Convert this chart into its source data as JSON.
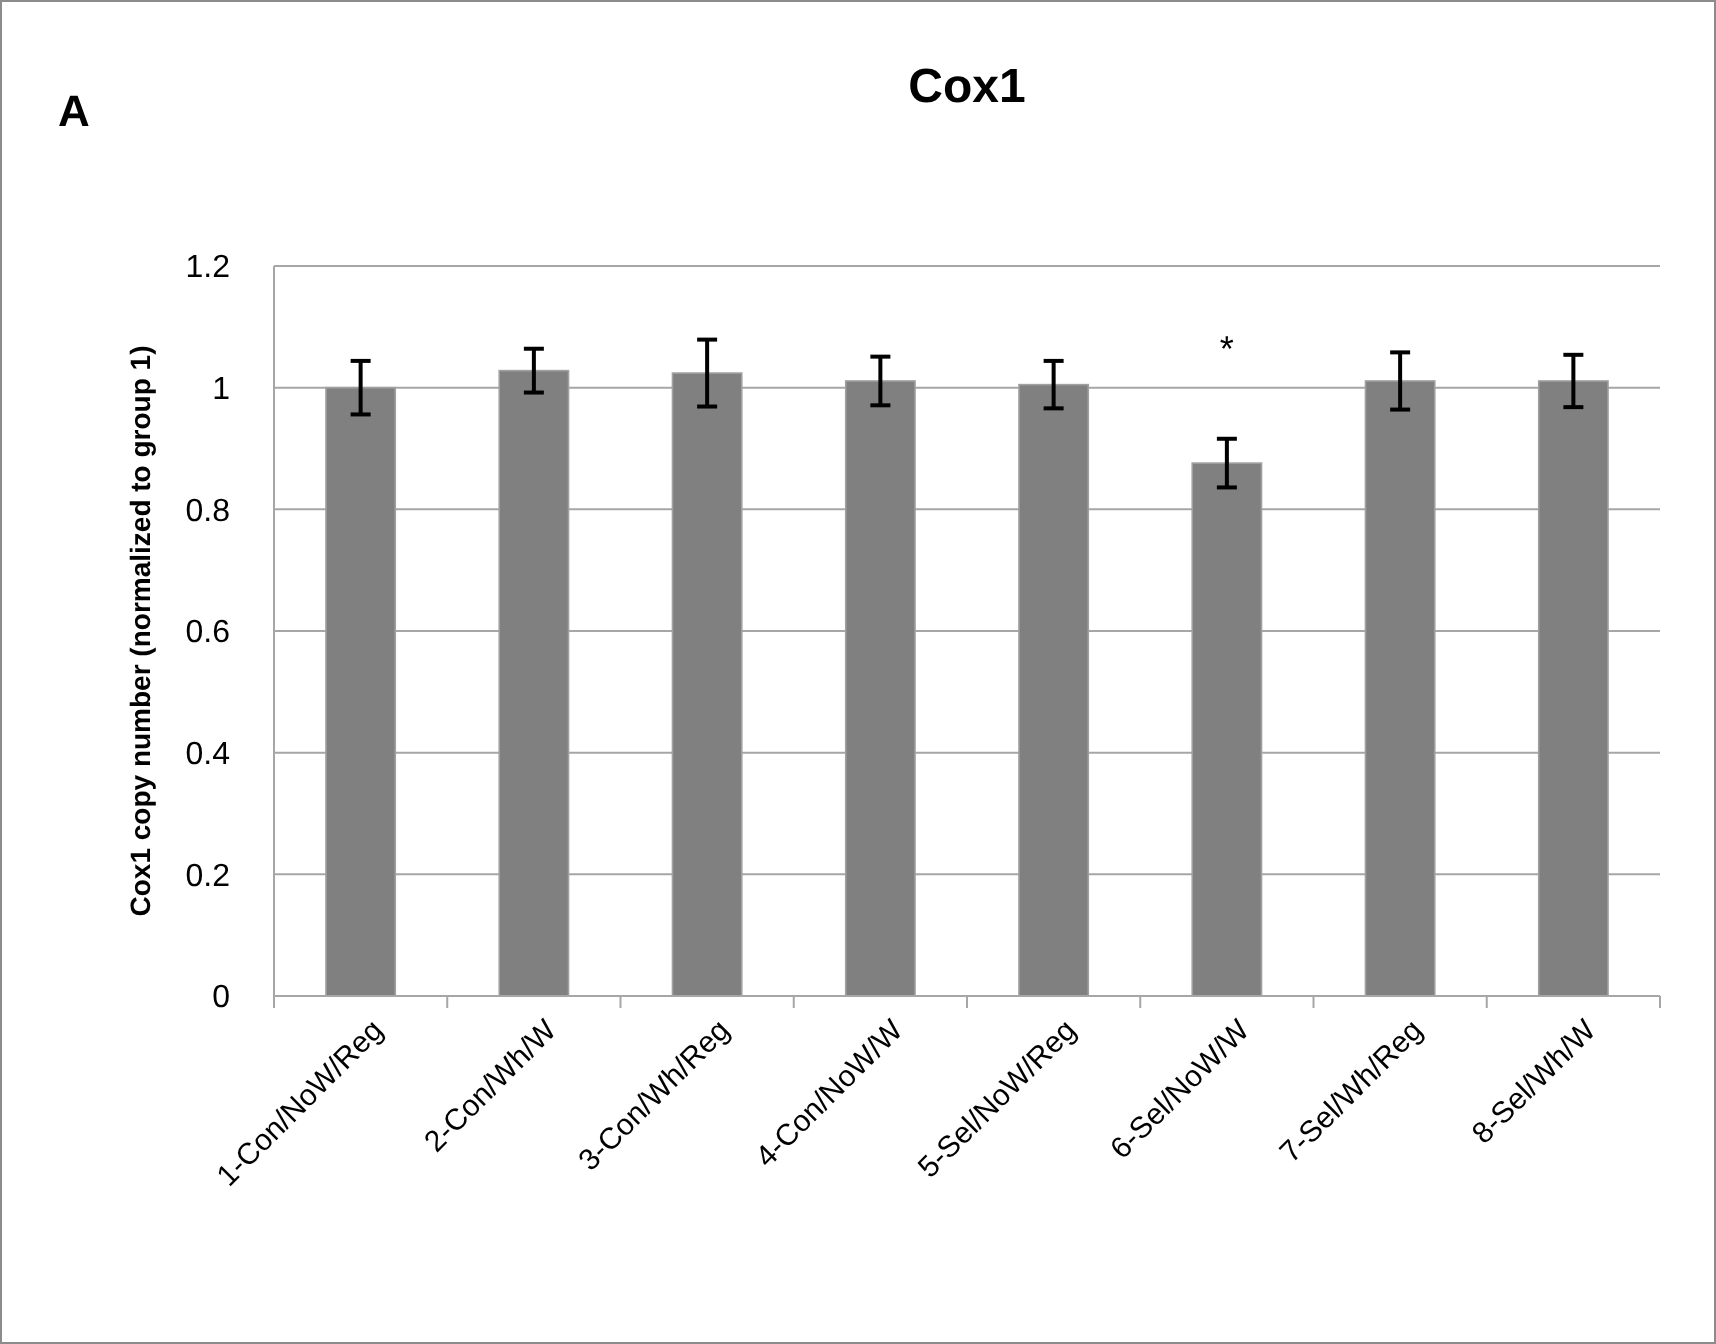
{
  "chart_data": {
    "type": "bar",
    "title": "Cox1",
    "ylabel": "Cox1 copy number (normalized to group 1)",
    "categories": [
      "1-Con/NoW/Reg",
      "2-Con/Wh/W",
      "3-Con/Wh/Reg",
      "4-Con/NoW/W",
      "5-Sel/NoW/Reg",
      "6-Sel/NoW/W",
      "7-Sel/Wh/Reg",
      "8-Sel/Wh/W"
    ],
    "values": [
      1.0,
      1.028,
      1.024,
      1.011,
      1.005,
      0.876,
      1.011,
      1.011
    ],
    "errors": [
      0.044,
      0.036,
      0.055,
      0.04,
      0.039,
      0.04,
      0.047,
      0.043
    ],
    "color": "#808080",
    "ylim": [
      0,
      1.2
    ],
    "yticks": [
      0,
      0.2,
      0.4,
      0.6,
      0.8,
      1,
      1.2
    ],
    "grid": "y",
    "annotations": [
      "A",
      "*"
    ]
  }
}
